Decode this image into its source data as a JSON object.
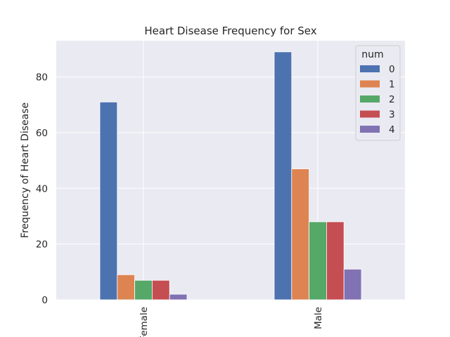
{
  "chart_data": {
    "type": "bar",
    "title": "Heart Disease Frequency for Sex",
    "xlabel": "",
    "ylabel": "Frequency of Heart Disease",
    "categories": [
      "Female",
      "Male"
    ],
    "series": [
      {
        "name": "0",
        "values": [
          71,
          89
        ],
        "color": "#4C72B0"
      },
      {
        "name": "1",
        "values": [
          9,
          47
        ],
        "color": "#DD8452"
      },
      {
        "name": "2",
        "values": [
          7,
          28
        ],
        "color": "#55A868"
      },
      {
        "name": "3",
        "values": [
          7,
          28
        ],
        "color": "#C44E52"
      },
      {
        "name": "4",
        "values": [
          2,
          11
        ],
        "color": "#8172B3"
      }
    ],
    "ylim": [
      0,
      93
    ],
    "yticks": [
      0,
      20,
      40,
      60,
      80
    ],
    "legend": {
      "title": "num",
      "placement": "upper right"
    },
    "grid": true,
    "background": "#EAEAF2",
    "grid_color": "#FFFFFF"
  }
}
